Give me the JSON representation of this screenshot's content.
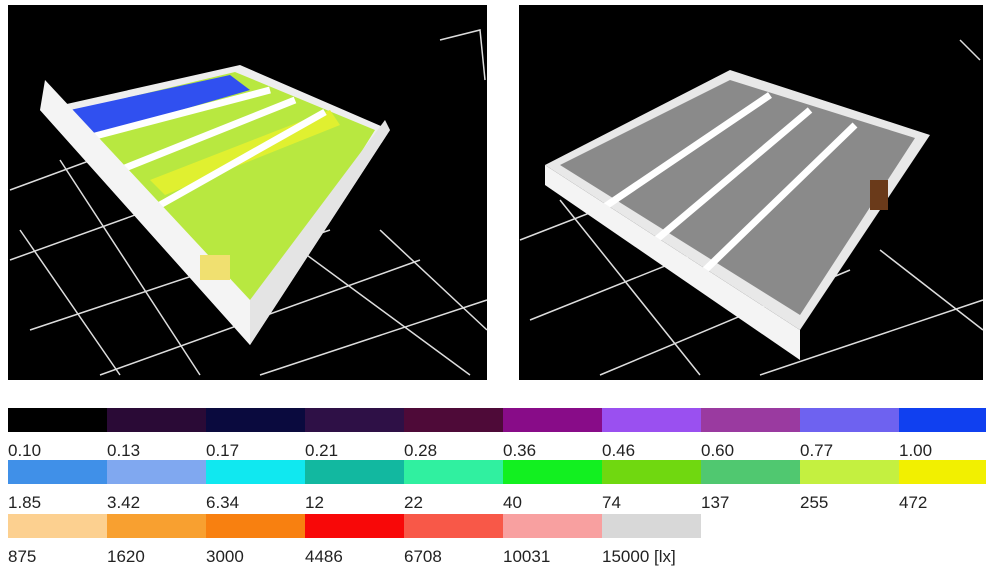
{
  "legend": {
    "swatches": [
      {
        "label": "0.10",
        "color": "#000000"
      },
      {
        "label": "0.13",
        "color": "#2a0a36"
      },
      {
        "label": "0.17",
        "color": "#0a0a3e"
      },
      {
        "label": "0.21",
        "color": "#2e1046"
      },
      {
        "label": "0.28",
        "color": "#4e0a38"
      },
      {
        "label": "0.36",
        "color": "#880c88"
      },
      {
        "label": "0.46",
        "color": "#9a50f0"
      },
      {
        "label": "0.60",
        "color": "#9a3aa0"
      },
      {
        "label": "0.77",
        "color": "#6e62f0"
      },
      {
        "label": "1.00",
        "color": "#1040f0"
      },
      {
        "label": "1.85",
        "color": "#4090e8"
      },
      {
        "label": "3.42",
        "color": "#80a8f0"
      },
      {
        "label": "6.34",
        "color": "#10e8f0"
      },
      {
        "label": "12",
        "color": "#12b8a0"
      },
      {
        "label": "22",
        "color": "#30f0a0"
      },
      {
        "label": "40",
        "color": "#12f020"
      },
      {
        "label": "74",
        "color": "#70d810"
      },
      {
        "label": "137",
        "color": "#50c870"
      },
      {
        "label": "255",
        "color": "#c4f040"
      },
      {
        "label": "472",
        "color": "#f2f000"
      },
      {
        "label": "875",
        "color": "#fcd090"
      },
      {
        "label": "1620",
        "color": "#f8a030"
      },
      {
        "label": "3000",
        "color": "#f88010"
      },
      {
        "label": "4486",
        "color": "#f80808"
      },
      {
        "label": "6708",
        "color": "#f85848"
      },
      {
        "label": "10031",
        "color": "#f8a0a0"
      },
      {
        "label": "15000 [lx]",
        "color": "#d8d8d8"
      }
    ]
  }
}
